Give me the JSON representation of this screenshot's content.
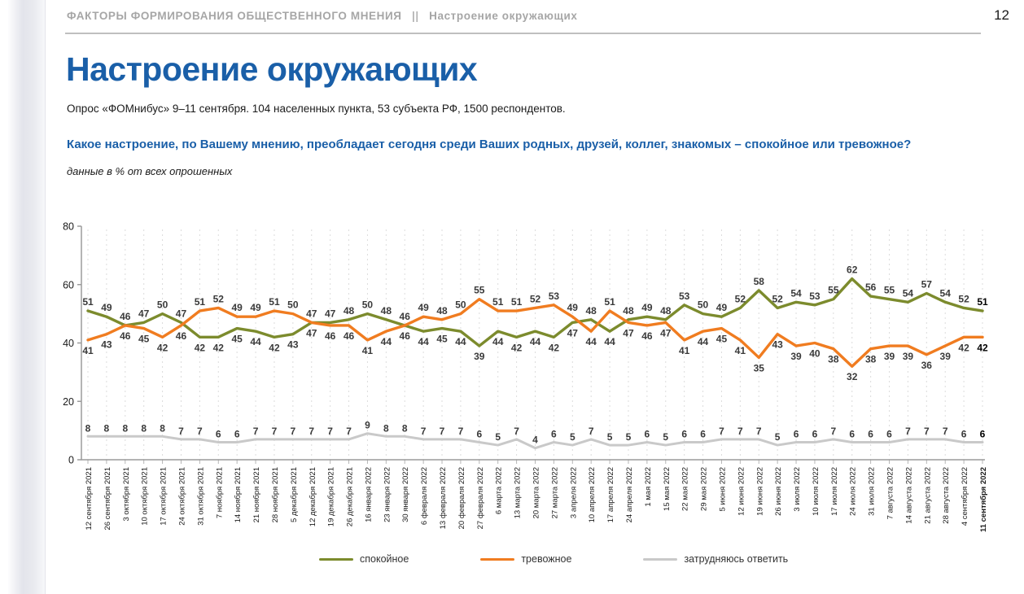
{
  "header": {
    "breadcrumb": "ФАКТОРЫ ФОРМИРОВАНИЯ ОБЩЕСТВЕННОГО МНЕНИЯ",
    "separator": "||",
    "section": "Настроение окружающих",
    "page_number": "12"
  },
  "title": "Настроение окружающих",
  "subtitle": "Опрос «ФОМнибус» 9–11 сентября. 104 населенных пункта, 53 субъекта РФ, 1500 респондентов.",
  "question": "Какое настроение, по Вашему мнению, преобладает сегодня среди Ваших родных, друзей, коллег, знакомых – спокойное или тревожное?",
  "note": "данные в % от всех опрошенных",
  "chart_data": {
    "type": "line",
    "title": "",
    "xlabel": "",
    "ylabel": "",
    "ylim": [
      0,
      80
    ],
    "yticks": [
      0,
      20,
      40,
      60,
      80
    ],
    "grid": "vertical-dashed",
    "legend_position": "bottom",
    "categories": [
      "12 сентября 2021",
      "26 сентября 2021",
      "3 октября 2021",
      "10 октября 2021",
      "17 октября 2021",
      "24 октября 2021",
      "31 октября 2021",
      "7 ноября 2021",
      "14 ноября 2021",
      "21 ноября 2021",
      "28 ноября 2021",
      "5 декабря 2021",
      "12 декабря 2021",
      "19 декабря 2021",
      "26 декабря 2021",
      "16 января 2022",
      "23 января 2022",
      "30 января 2022",
      "6 февраля 2022",
      "13 февраля 2022",
      "20 февраля 2022",
      "27 февраля 2022",
      "6 марта 2022",
      "13 марта 2022",
      "20 марта 2022",
      "27 марта 2022",
      "3 апреля 2022",
      "10 апреля 2022",
      "17 апреля 2022",
      "24 апреля 2022",
      "1 мая 2022",
      "15 мая 2022",
      "22 мая 2022",
      "29 мая 2022",
      "5 июня 2022",
      "12 июня 2022",
      "19 июня 2022",
      "26 июня 2022",
      "3 июля 2022",
      "10 июля 2022",
      "17 июля 2022",
      "24 июля 2022",
      "31 июля 2022",
      "7 августа 2022",
      "14 августа 2022",
      "21 августа 2022",
      "28 августа 2022",
      "4 сентября 2022",
      "11 сентября 2022"
    ],
    "series": [
      {
        "name": "спокойное",
        "color": "#7c8b2d",
        "values": [
          51,
          49,
          46,
          47,
          50,
          47,
          42,
          42,
          45,
          44,
          42,
          43,
          47,
          47,
          48,
          50,
          48,
          46,
          44,
          45,
          44,
          39,
          44,
          42,
          44,
          42,
          47,
          48,
          44,
          48,
          49,
          48,
          53,
          50,
          49,
          52,
          58,
          52,
          54,
          53,
          55,
          62,
          56,
          55,
          54,
          57,
          54,
          52,
          51
        ]
      },
      {
        "name": "тревожное",
        "color": "#f07c20",
        "values": [
          41,
          43,
          46,
          45,
          42,
          46,
          51,
          52,
          49,
          49,
          51,
          50,
          47,
          46,
          46,
          41,
          44,
          46,
          49,
          48,
          50,
          55,
          51,
          51,
          52,
          53,
          49,
          44,
          51,
          47,
          46,
          47,
          41,
          44,
          45,
          41,
          35,
          43,
          39,
          40,
          38,
          32,
          38,
          39,
          39,
          36,
          39,
          42,
          42
        ]
      },
      {
        "name": "затрудняюсь ответить",
        "color": "#c9c9c9",
        "values": [
          8,
          8,
          8,
          8,
          8,
          7,
          7,
          6,
          6,
          7,
          7,
          7,
          7,
          7,
          7,
          9,
          8,
          8,
          7,
          7,
          7,
          6,
          5,
          7,
          4,
          6,
          5,
          7,
          5,
          5,
          6,
          5,
          6,
          6,
          7,
          7,
          7,
          5,
          6,
          6,
          7,
          6,
          6,
          6,
          7,
          7,
          7,
          6,
          6
        ]
      }
    ]
  }
}
